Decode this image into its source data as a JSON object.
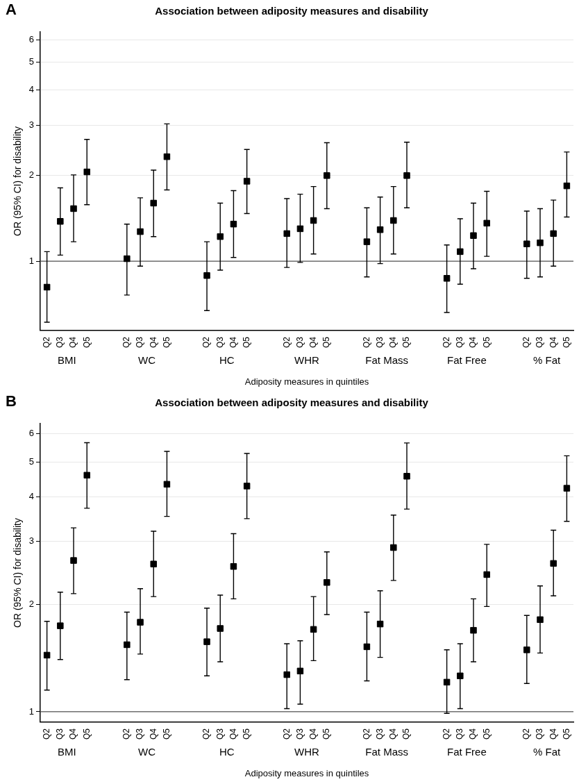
{
  "chart_data": [
    {
      "type": "scatter",
      "title": "Association between adiposity measures and disability",
      "xlabel": "Adiposity measures in quintiles",
      "ylabel": "OR (95% CI) for disability",
      "categories": [
        "Q2",
        "Q3",
        "Q4",
        "Q5",
        null,
        null,
        "Q2",
        "Q3",
        "Q4",
        "Q5",
        null,
        null,
        "Q2",
        "Q3",
        "Q4",
        "Q5",
        null,
        null,
        "Q2",
        "Q3",
        "Q4",
        "Q5",
        null,
        null,
        "Q2",
        "Q3",
        "Q4",
        "Q5",
        null,
        null,
        "Q2",
        "Q3",
        "Q4",
        "Q5",
        null,
        null,
        "Q2",
        "Q3",
        "Q4",
        "Q5"
      ],
      "series": [
        {
          "color": "#000000",
          "values": [
            0.81,
            1.38,
            1.53,
            2.06,
            null,
            null,
            1.02,
            1.27,
            1.6,
            2.33,
            null,
            null,
            0.89,
            1.22,
            1.35,
            1.91,
            null,
            null,
            1.25,
            1.3,
            1.39,
            2.0,
            null,
            null,
            1.17,
            1.29,
            1.39,
            2.0,
            null,
            null,
            0.87,
            1.08,
            1.23,
            1.36,
            null,
            null,
            1.15,
            1.16,
            1.25,
            1.84
          ],
          "errors": [
            [
              0.61,
              1.08
            ],
            [
              1.05,
              1.81
            ],
            [
              1.17,
              2.01
            ],
            [
              1.58,
              2.68
            ],
            null,
            null,
            [
              0.76,
              1.35
            ],
            [
              0.96,
              1.67
            ],
            [
              1.22,
              2.09
            ],
            [
              1.78,
              3.04
            ],
            null,
            null,
            [
              0.67,
              1.17
            ],
            [
              0.93,
              1.6
            ],
            [
              1.03,
              1.77
            ],
            [
              1.47,
              2.47
            ],
            null,
            null,
            [
              0.95,
              1.66
            ],
            [
              0.99,
              1.72
            ],
            [
              1.06,
              1.83
            ],
            [
              1.53,
              2.61
            ],
            null,
            null,
            [
              0.88,
              1.54
            ],
            [
              0.98,
              1.68
            ],
            [
              1.06,
              1.83
            ],
            [
              1.54,
              2.62
            ],
            null,
            null,
            [
              0.66,
              1.14
            ],
            [
              0.83,
              1.41
            ],
            [
              0.94,
              1.6
            ],
            [
              1.04,
              1.76
            ],
            null,
            null,
            [
              0.87,
              1.5
            ],
            [
              0.88,
              1.53
            ],
            [
              0.96,
              1.64
            ],
            [
              1.43,
              2.42
            ]
          ]
        }
      ],
      "log": "y",
      "ylim": [
        0.57,
        6.4
      ],
      "yticks": [
        1,
        2,
        3,
        4,
        5,
        6
      ],
      "grid": "y",
      "marker": "square",
      "ref_lines": [
        {
          "axis": "y",
          "value": 1,
          "color": "#555555"
        }
      ],
      "annotations": [
        "A",
        "BMI",
        "WC",
        "HC",
        "WHR",
        "Fat Mass",
        "Fat Free",
        "% Fat"
      ]
    },
    {
      "type": "scatter",
      "title": "Association between adiposity measures and disability",
      "xlabel": "Adiposity measures in quintiles",
      "ylabel": "OR (95% CI) for disability",
      "categories": [
        "Q2",
        "Q3",
        "Q4",
        "Q5",
        null,
        null,
        "Q2",
        "Q3",
        "Q4",
        "Q5",
        null,
        null,
        "Q2",
        "Q3",
        "Q4",
        "Q5",
        null,
        null,
        "Q2",
        "Q3",
        "Q4",
        "Q5",
        null,
        null,
        "Q2",
        "Q3",
        "Q4",
        "Q5",
        null,
        null,
        "Q2",
        "Q3",
        "Q4",
        "Q5",
        null,
        null,
        "Q2",
        "Q3",
        "Q4",
        "Q5"
      ],
      "series": [
        {
          "color": "#000000",
          "values": [
            1.44,
            1.74,
            2.65,
            4.59,
            null,
            null,
            1.54,
            1.78,
            2.59,
            4.33,
            null,
            null,
            1.57,
            1.71,
            2.55,
            4.28,
            null,
            null,
            1.27,
            1.3,
            1.7,
            2.3,
            null,
            null,
            1.52,
            1.76,
            2.88,
            4.56,
            null,
            null,
            1.21,
            1.26,
            1.69,
            2.42,
            null,
            null,
            1.49,
            1.81,
            2.6,
            4.22
          ],
          "errors": [
            [
              1.15,
              1.79
            ],
            [
              1.4,
              2.16
            ],
            [
              2.14,
              3.27
            ],
            [
              3.71,
              5.66
            ],
            null,
            null,
            [
              1.23,
              1.9
            ],
            [
              1.45,
              2.21
            ],
            [
              2.1,
              3.2
            ],
            [
              3.52,
              5.35
            ],
            null,
            null,
            [
              1.26,
              1.95
            ],
            [
              1.38,
              2.12
            ],
            [
              2.07,
              3.15
            ],
            [
              3.47,
              5.28
            ],
            null,
            null,
            [
              1.02,
              1.55
            ],
            [
              1.05,
              1.58
            ],
            [
              1.39,
              2.1
            ],
            [
              1.87,
              2.8
            ],
            null,
            null,
            [
              1.22,
              1.9
            ],
            [
              1.42,
              2.18
            ],
            [
              2.33,
              3.55
            ],
            [
              3.69,
              5.65
            ],
            null,
            null,
            [
              0.99,
              1.49
            ],
            [
              1.02,
              1.55
            ],
            [
              1.38,
              2.07
            ],
            [
              1.97,
              2.94
            ],
            null,
            null,
            [
              1.2,
              1.86
            ],
            [
              1.46,
              2.25
            ],
            [
              2.11,
              3.22
            ],
            [
              3.41,
              5.2
            ]
          ]
        }
      ],
      "log": "y",
      "ylim": [
        0.935,
        6.4
      ],
      "yticks": [
        1,
        2,
        3,
        4,
        5,
        6
      ],
      "grid": "y",
      "marker": "square",
      "ref_lines": [
        {
          "axis": "y",
          "value": 1,
          "color": "#555555"
        }
      ],
      "annotations": [
        "B",
        "BMI",
        "WC",
        "HC",
        "WHR",
        "Fat Mass",
        "Fat Free",
        "% Fat"
      ]
    }
  ]
}
